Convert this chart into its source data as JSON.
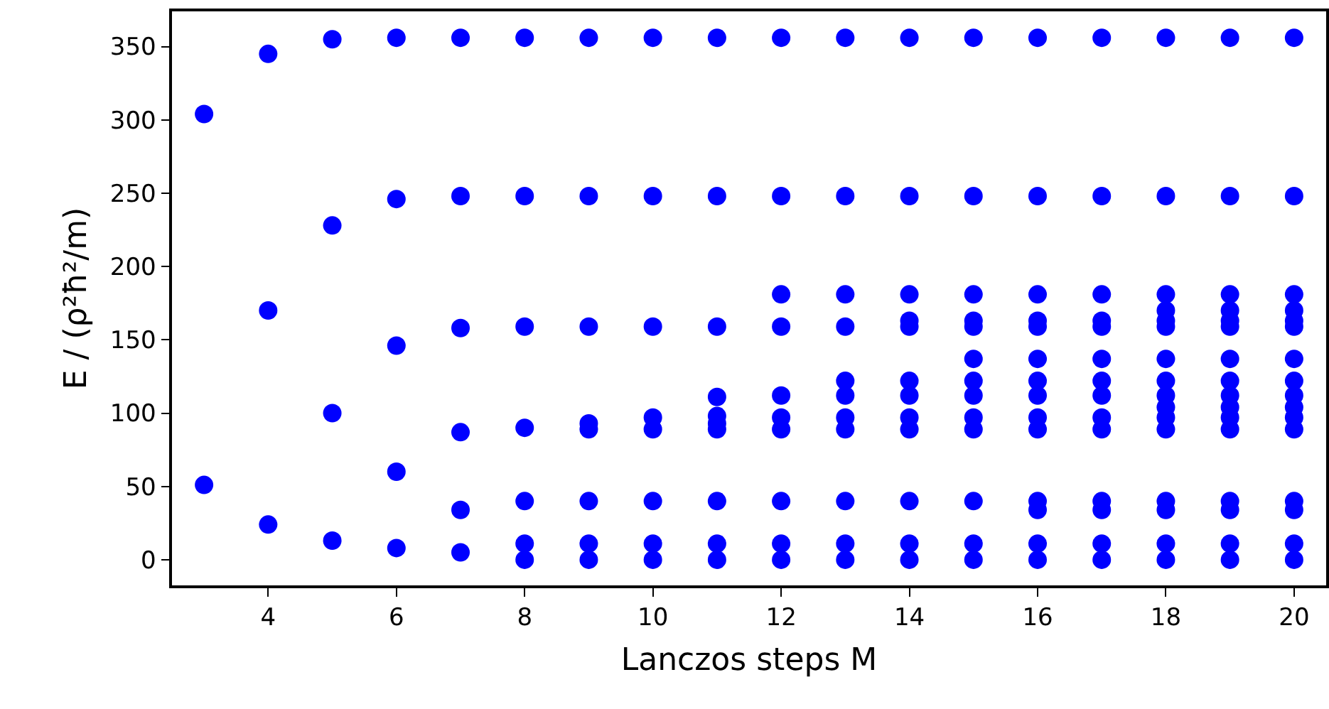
{
  "chart_data": {
    "type": "scatter",
    "xlabel": "Lanczos steps M",
    "ylabel": "E / (ρ²ħ²/m)",
    "xlim": [
      2.5,
      20.5
    ],
    "ylim": [
      -17.5,
      374
    ],
    "xticks": [
      4,
      6,
      8,
      10,
      12,
      14,
      16,
      18,
      20
    ],
    "yticks": [
      0,
      50,
      100,
      150,
      200,
      250,
      300,
      350
    ],
    "marker": "circle",
    "series": [
      {
        "color": "#0000ff",
        "x": [
          3,
          3,
          4,
          4,
          4,
          5,
          5,
          5,
          5,
          6,
          6,
          6,
          6,
          6,
          7,
          7,
          7,
          7,
          7,
          7,
          8,
          8,
          8,
          8,
          8,
          8,
          8,
          9,
          9,
          9,
          9,
          9,
          9,
          9,
          9,
          10,
          10,
          10,
          10,
          10,
          10,
          10,
          10,
          11,
          11,
          11,
          11,
          11,
          11,
          11,
          11,
          11,
          11,
          12,
          12,
          12,
          12,
          12,
          12,
          12,
          12,
          12,
          12,
          13,
          13,
          13,
          13,
          13,
          13,
          13,
          13,
          13,
          13,
          13,
          14,
          14,
          14,
          14,
          14,
          14,
          14,
          14,
          14,
          14,
          14,
          14,
          15,
          15,
          15,
          15,
          15,
          15,
          15,
          15,
          15,
          15,
          15,
          15,
          15,
          16,
          16,
          16,
          16,
          16,
          16,
          16,
          16,
          16,
          16,
          16,
          16,
          16,
          16,
          17,
          17,
          17,
          17,
          17,
          17,
          17,
          17,
          17,
          17,
          17,
          17,
          17,
          17,
          18,
          18,
          18,
          18,
          18,
          18,
          18,
          18,
          18,
          18,
          18,
          18,
          18,
          18,
          18,
          18,
          19,
          19,
          19,
          19,
          19,
          19,
          19,
          19,
          19,
          19,
          19,
          19,
          19,
          19,
          19,
          19,
          20,
          20,
          20,
          20,
          20,
          20,
          20,
          20,
          20,
          20,
          20,
          20,
          20,
          20,
          20,
          20
        ],
        "values": [
          51,
          304,
          24,
          170,
          345,
          13,
          100,
          228,
          355,
          8,
          60,
          146,
          246,
          356,
          5,
          34,
          87,
          158,
          248,
          356,
          0,
          11,
          40,
          90,
          159,
          248,
          356,
          0,
          11,
          40,
          89,
          93,
          159,
          248,
          356,
          0,
          11,
          40,
          89,
          97,
          159,
          248,
          356,
          0,
          11,
          40,
          89,
          93,
          98,
          111,
          159,
          248,
          356,
          0,
          11,
          40,
          89,
          97,
          112,
          159,
          181,
          248,
          356,
          0,
          11,
          40,
          89,
          97,
          112,
          122,
          159,
          181,
          248,
          356,
          0,
          11,
          40,
          89,
          97,
          112,
          122,
          159,
          163,
          181,
          248,
          356,
          0,
          11,
          40,
          89,
          97,
          112,
          122,
          137,
          159,
          163,
          181,
          248,
          356,
          0,
          11,
          34,
          40,
          89,
          97,
          112,
          122,
          137,
          159,
          163,
          181,
          248,
          356,
          0,
          11,
          34,
          40,
          89,
          97,
          112,
          122,
          137,
          159,
          163,
          181,
          248,
          356,
          0,
          11,
          34,
          40,
          89,
          97,
          104,
          112,
          122,
          137,
          159,
          163,
          170,
          181,
          248,
          356,
          0,
          11,
          34,
          40,
          89,
          97,
          104,
          112,
          122,
          137,
          159,
          163,
          170,
          181,
          248,
          356,
          0,
          11,
          34,
          40,
          89,
          97,
          104,
          112,
          122,
          137,
          159,
          163,
          170,
          181,
          248,
          356
        ]
      }
    ]
  }
}
